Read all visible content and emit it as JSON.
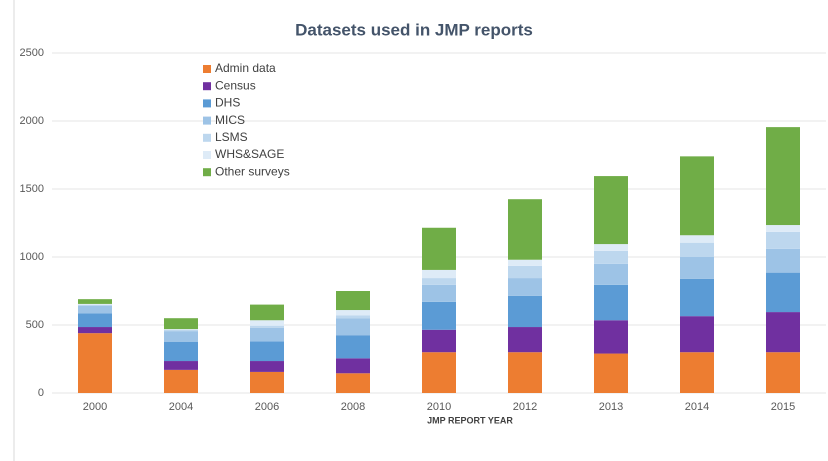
{
  "chart_data": {
    "type": "stacked_bar",
    "title": "Datasets used in JMP reports",
    "x_label": "JMP REPORT YEAR",
    "categories": [
      "2000",
      "2004",
      "2006",
      "2008",
      "2010",
      "2012",
      "2013",
      "2014",
      "2015"
    ],
    "series": [
      {
        "name": "Admin data",
        "color": "#ed7d31",
        "values": [
          440,
          170,
          155,
          145,
          300,
          300,
          290,
          300,
          300
        ]
      },
      {
        "name": "Census",
        "color": "#7030a0",
        "values": [
          45,
          65,
          80,
          110,
          165,
          185,
          245,
          265,
          295
        ]
      },
      {
        "name": "DHS",
        "color": "#5b9bd5",
        "values": [
          100,
          140,
          145,
          170,
          205,
          230,
          260,
          275,
          290
        ]
      },
      {
        "name": "MICS",
        "color": "#9dc3e6",
        "values": [
          60,
          80,
          100,
          125,
          125,
          130,
          155,
          160,
          175
        ]
      },
      {
        "name": "LSMS",
        "color": "#bdd7ee",
        "values": [
          0,
          10,
          15,
          20,
          50,
          90,
          95,
          105,
          125
        ]
      },
      {
        "name": "WHS&SAGE",
        "color": "#deebf7",
        "values": [
          10,
          5,
          40,
          40,
          60,
          45,
          50,
          55,
          50
        ]
      },
      {
        "name": "Other surveys",
        "color": "#70ad47",
        "values": [
          35,
          80,
          115,
          140,
          310,
          445,
          500,
          580,
          720
        ]
      }
    ],
    "ylim": [
      0,
      2500
    ],
    "yticks": [
      0,
      500,
      1000,
      1500,
      2000,
      2500
    ],
    "grid": true
  }
}
